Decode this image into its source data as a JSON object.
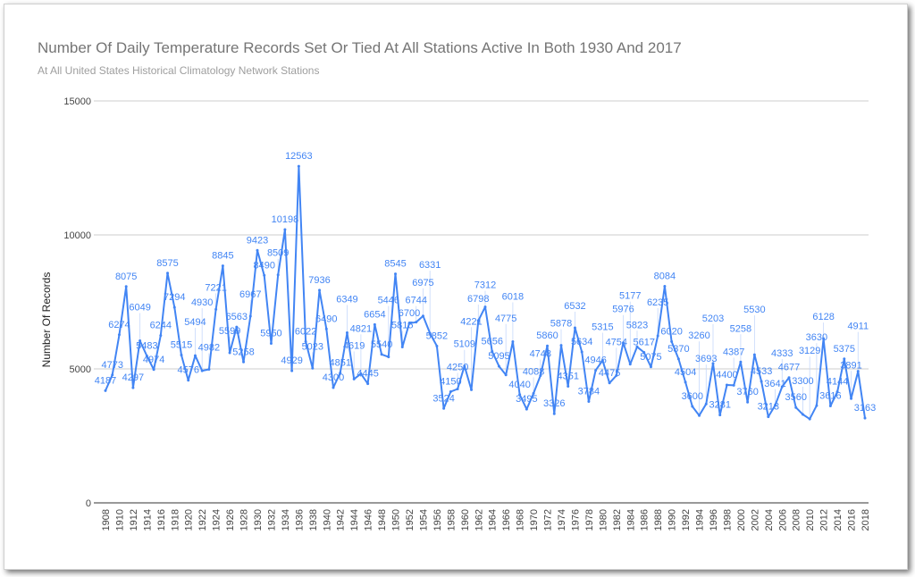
{
  "chart_data": {
    "type": "line",
    "title": "Number Of Daily Temperature Records Set Or Tied At All Stations Active In Both 1930 And 2017",
    "subtitle": "At All United States Historical Climatology Network Stations",
    "xlabel": "",
    "ylabel": "Number Of Records",
    "ylim": [
      0,
      15000
    ],
    "yticks": [
      "0",
      "5000",
      "10000",
      "15000"
    ],
    "ytick_values": [
      0,
      5000,
      10000,
      15000
    ],
    "grid": true,
    "legend": "none",
    "line_color": "#4285f4",
    "x_start": 1908,
    "x_end": 2018,
    "x_tick_step": 2,
    "series": [
      {
        "name": "Number Of Records",
        "values": [
          4187,
          4773,
          6274,
          8075,
          4297,
          6049,
          5483,
          4974,
          6244,
          8575,
          7294,
          5515,
          4576,
          5494,
          4930,
          4982,
          7221,
          8845,
          5599,
          6563,
          5258,
          6967,
          9423,
          8490,
          5950,
          8509,
          10198,
          4929,
          12563,
          6022,
          5023,
          7936,
          6490,
          4300,
          4851,
          6349,
          4619,
          4821,
          4445,
          6654,
          5540,
          5446,
          8545,
          5815,
          6700,
          6744,
          6975,
          6331,
          5852,
          3524,
          4150,
          4250,
          5109,
          4221,
          6798,
          7312,
          5656,
          5095,
          4775,
          6018,
          4040,
          3495,
          4088,
          4748,
          5860,
          3326,
          5878,
          4351,
          6532,
          5634,
          3784,
          4946,
          5315,
          4475,
          4754,
          5976,
          5177,
          5823,
          5617,
          5075,
          6235,
          8084,
          6020,
          5370,
          4504,
          3600,
          3260,
          3693,
          5203,
          3281,
          4400,
          4387,
          5258,
          3760,
          5530,
          4533,
          3213,
          3641,
          4333,
          4677,
          3560,
          3300,
          3129,
          3630,
          6128,
          3616,
          4144,
          5375,
          3891,
          4911,
          3163
        ]
      }
    ]
  }
}
